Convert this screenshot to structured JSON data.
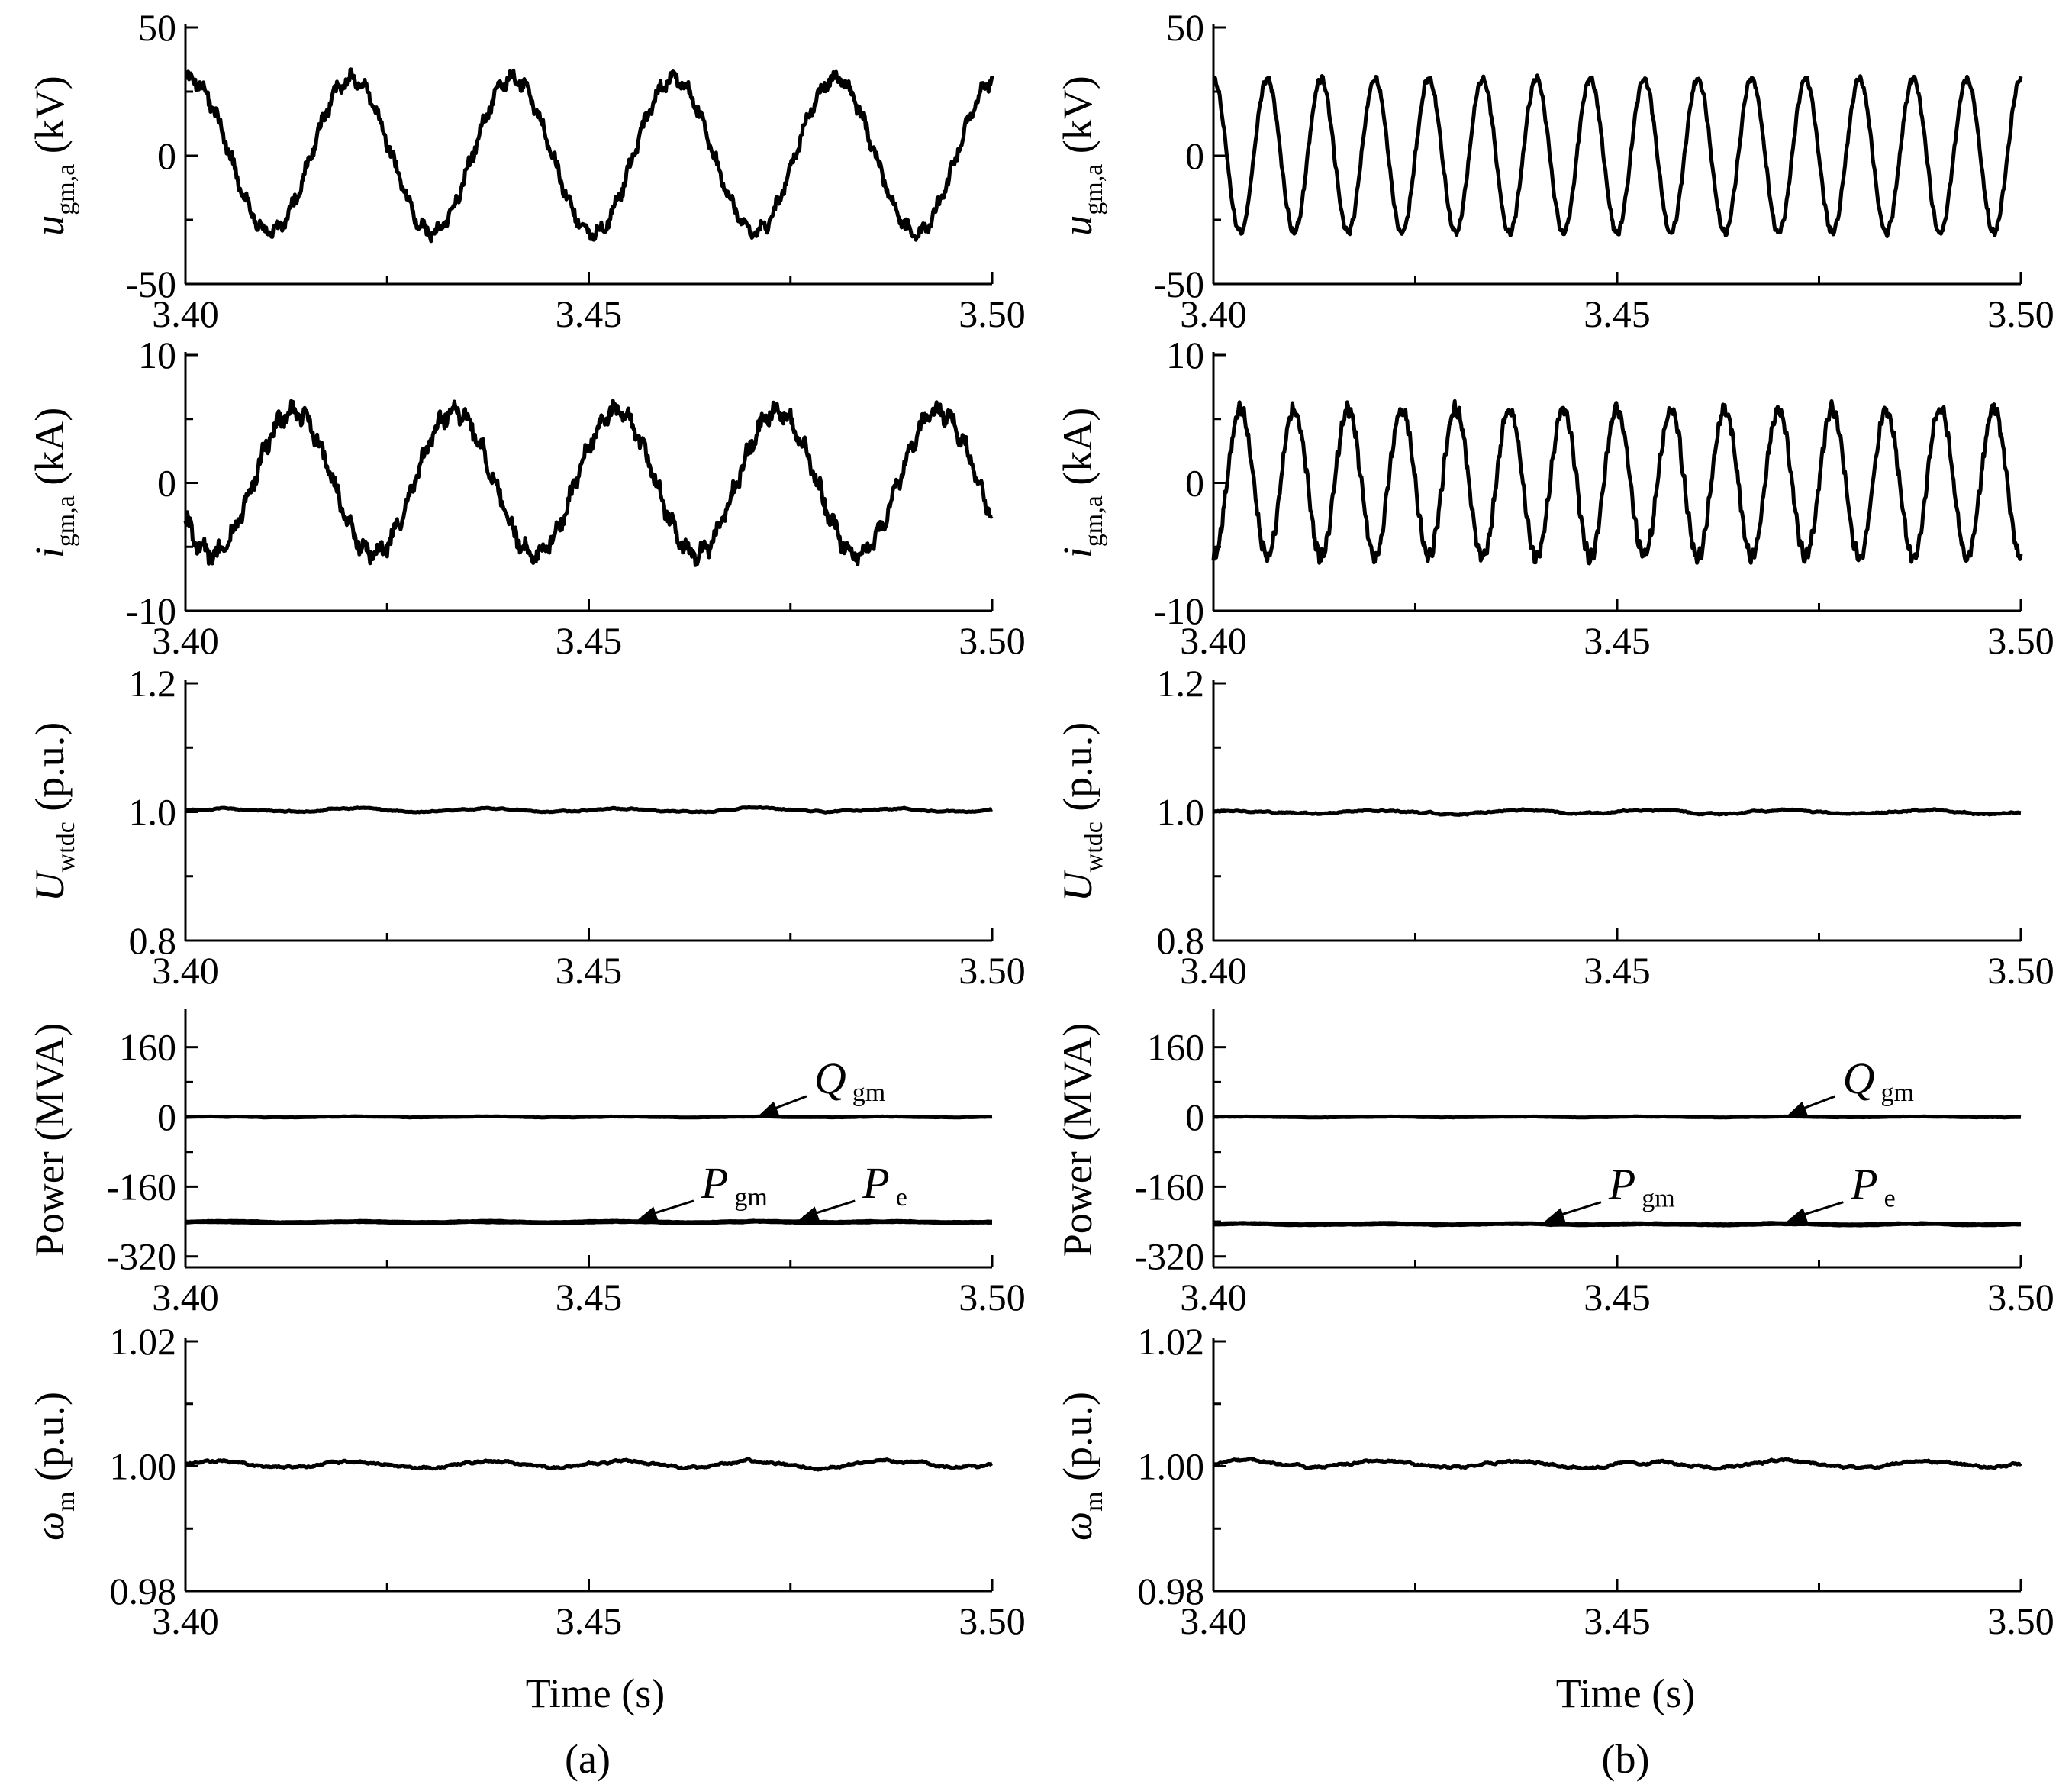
{
  "figure": {
    "panels": [
      {
        "id": "a",
        "caption": "(a)",
        "xlabel": "Time (s)"
      },
      {
        "id": "b",
        "caption": "(b)",
        "xlabel": "Time (s)"
      }
    ]
  },
  "chart_data": [
    {
      "type": "line",
      "panel": "a",
      "id": "a-u",
      "ylabel": {
        "sym": "u",
        "sub": "gm,a",
        "unit": " (kV)"
      },
      "xlim": [
        3.4,
        3.5
      ],
      "xticks": [
        "3.40",
        "3.45",
        "3.50"
      ],
      "ylim": [
        -50,
        50
      ],
      "yticks": [
        {
          "v": 50,
          "label": "50"
        },
        {
          "v": 0,
          "label": "0"
        },
        {
          "v": -50,
          "label": "-50"
        }
      ],
      "series": [
        {
          "name": "u_gm,a",
          "kind": "sine",
          "amplitude": 30,
          "frequency_hz": 50,
          "phase_deg": 80,
          "ripple": 3.5
        }
      ]
    },
    {
      "type": "line",
      "panel": "a",
      "id": "a-i",
      "ylabel": {
        "sym": "i",
        "sub": "gm,a",
        "unit": " (kA)"
      },
      "xlim": [
        3.4,
        3.5
      ],
      "xticks": [
        "3.40",
        "3.45",
        "3.50"
      ],
      "ylim": [
        -10,
        10
      ],
      "yticks": [
        {
          "v": 10,
          "label": "10"
        },
        {
          "v": 0,
          "label": "0"
        },
        {
          "v": -10,
          "label": "-10"
        }
      ],
      "series": [
        {
          "name": "i_gm,a",
          "kind": "sine",
          "amplitude": 5.6,
          "frequency_hz": 50,
          "phase_deg": 210,
          "ripple": 0.9
        }
      ]
    },
    {
      "type": "line",
      "panel": "a",
      "id": "a-U",
      "ylabel": {
        "sym": "U",
        "sub": "wtdc",
        "unit": " (p.u.)"
      },
      "xlim": [
        3.4,
        3.5
      ],
      "xticks": [
        "3.40",
        "3.45",
        "3.50"
      ],
      "ylim": [
        0.8,
        1.2
      ],
      "yticks": [
        {
          "v": 1.2,
          "label": "1.2"
        },
        {
          "v": 1.0,
          "label": "1.0"
        },
        {
          "v": 0.8,
          "label": "0.8"
        }
      ],
      "series": [
        {
          "name": "U_wtdc",
          "kind": "flat",
          "value": 1.003,
          "ripple": 0.004
        }
      ]
    },
    {
      "type": "line",
      "panel": "a",
      "id": "a-P",
      "ylabel": {
        "sym": "",
        "sub": "",
        "unit": "Power (MVA)"
      },
      "xlim": [
        3.4,
        3.5
      ],
      "xticks": [
        "3.40",
        "3.45",
        "3.50"
      ],
      "ylim": [
        -345,
        240
      ],
      "yticks": [
        {
          "v": 160,
          "label": "160"
        },
        {
          "v": 0,
          "label": "0"
        },
        {
          "v": -160,
          "label": "-160"
        },
        {
          "v": -320,
          "label": "-320"
        }
      ],
      "series": [
        {
          "name": "Q_gm",
          "kind": "flat",
          "value": 0,
          "ripple": 1.5
        },
        {
          "name": "P_gm",
          "kind": "flat",
          "value": -240,
          "ripple": 2
        },
        {
          "name": "P_e",
          "kind": "flat",
          "value": -242,
          "ripple": 2
        }
      ],
      "annotations": [
        {
          "sym": "Q",
          "sub": "gm",
          "x": 3.471,
          "y": 2,
          "tx": 3.477,
          "ty": 65
        },
        {
          "sym": "P",
          "sub": "gm",
          "x": 3.456,
          "y": -237,
          "tx": 3.463,
          "ty": -175
        },
        {
          "sym": "P",
          "sub": "e",
          "x": 3.476,
          "y": -237,
          "tx": 3.483,
          "ty": -175
        }
      ]
    },
    {
      "type": "line",
      "panel": "a",
      "id": "a-w",
      "ylabel": {
        "sym": "ω",
        "sub": "m",
        "unit": " (p.u.)"
      },
      "xlim": [
        3.4,
        3.5
      ],
      "xticks": [
        "3.40",
        "3.45",
        "3.50"
      ],
      "ylim": [
        0.98,
        1.02
      ],
      "yticks": [
        {
          "v": 1.02,
          "label": "1.02"
        },
        {
          "v": 1.0,
          "label": "1.00"
        },
        {
          "v": 0.98,
          "label": "0.98"
        }
      ],
      "series": [
        {
          "name": "omega_m",
          "kind": "flat",
          "value": 1.0003,
          "ripple": 0.0008
        }
      ]
    },
    {
      "type": "line",
      "panel": "b",
      "id": "b-u",
      "ylabel": {
        "sym": "u",
        "sub": "gm,a",
        "unit": " (kV)"
      },
      "xlim": [
        3.4,
        3.5
      ],
      "xticks": [
        "3.40",
        "3.45",
        "3.50"
      ],
      "ylim": [
        -50,
        50
      ],
      "yticks": [
        {
          "v": 50,
          "label": "50"
        },
        {
          "v": 0,
          "label": "0"
        },
        {
          "v": -50,
          "label": "-50"
        }
      ],
      "series": [
        {
          "name": "u_gm,a",
          "kind": "sine",
          "amplitude": 30,
          "frequency_hz": 150,
          "phase_deg": 90,
          "ripple": 1.5
        }
      ]
    },
    {
      "type": "line",
      "panel": "b",
      "id": "b-i",
      "ylabel": {
        "sym": "i",
        "sub": "gm,a",
        "unit": " (kA)"
      },
      "xlim": [
        3.4,
        3.5
      ],
      "xticks": [
        "3.40",
        "3.45",
        "3.50"
      ],
      "ylim": [
        -10,
        10
      ],
      "yticks": [
        {
          "v": 10,
          "label": "10"
        },
        {
          "v": 0,
          "label": "0"
        },
        {
          "v": -10,
          "label": "-10"
        }
      ],
      "series": [
        {
          "name": "i_gm,a",
          "kind": "sine",
          "amplitude": 5.8,
          "frequency_hz": 150,
          "phase_deg": 270,
          "ripple": 0.6
        }
      ]
    },
    {
      "type": "line",
      "panel": "b",
      "id": "b-U",
      "ylabel": {
        "sym": "U",
        "sub": "wtdc",
        "unit": " (p.u.)"
      },
      "xlim": [
        3.4,
        3.5
      ],
      "xticks": [
        "3.40",
        "3.45",
        "3.50"
      ],
      "ylim": [
        0.8,
        1.2
      ],
      "yticks": [
        {
          "v": 1.2,
          "label": "1.2"
        },
        {
          "v": 1.0,
          "label": "1.0"
        },
        {
          "v": 0.8,
          "label": "0.8"
        }
      ],
      "series": [
        {
          "name": "U_wtdc",
          "kind": "flat",
          "value": 1.0,
          "ripple": 0.005
        }
      ]
    },
    {
      "type": "line",
      "panel": "b",
      "id": "b-P",
      "ylabel": {
        "sym": "",
        "sub": "",
        "unit": "Power (MVA)"
      },
      "xlim": [
        3.4,
        3.5
      ],
      "xticks": [
        "3.40",
        "3.45",
        "3.50"
      ],
      "ylim": [
        -345,
        240
      ],
      "yticks": [
        {
          "v": 160,
          "label": "160"
        },
        {
          "v": 0,
          "label": "0"
        },
        {
          "v": -160,
          "label": "-160"
        },
        {
          "v": -320,
          "label": "-320"
        }
      ],
      "series": [
        {
          "name": "Q_gm",
          "kind": "flat",
          "value": 0,
          "ripple": 1.5
        },
        {
          "name": "P_gm",
          "kind": "flat",
          "value": -245,
          "ripple": 2
        },
        {
          "name": "P_e",
          "kind": "flat",
          "value": -247,
          "ripple": 2
        }
      ],
      "annotations": [
        {
          "sym": "Q",
          "sub": "gm",
          "x": 3.471,
          "y": 2,
          "tx": 3.477,
          "ty": 65
        },
        {
          "sym": "P",
          "sub": "gm",
          "x": 3.441,
          "y": -240,
          "tx": 3.448,
          "ty": -178
        },
        {
          "sym": "P",
          "sub": "e",
          "x": 3.471,
          "y": -240,
          "tx": 3.478,
          "ty": -178
        }
      ]
    },
    {
      "type": "line",
      "panel": "b",
      "id": "b-w",
      "ylabel": {
        "sym": "ω",
        "sub": "m",
        "unit": " (p.u.)"
      },
      "xlim": [
        3.4,
        3.5
      ],
      "xticks": [
        "3.40",
        "3.45",
        "3.50"
      ],
      "ylim": [
        0.98,
        1.02
      ],
      "yticks": [
        {
          "v": 1.02,
          "label": "1.02"
        },
        {
          "v": 1.0,
          "label": "1.00"
        },
        {
          "v": 0.98,
          "label": "0.98"
        }
      ],
      "series": [
        {
          "name": "omega_m",
          "kind": "flat",
          "value": 1.0003,
          "ripple": 0.0008
        }
      ]
    }
  ]
}
